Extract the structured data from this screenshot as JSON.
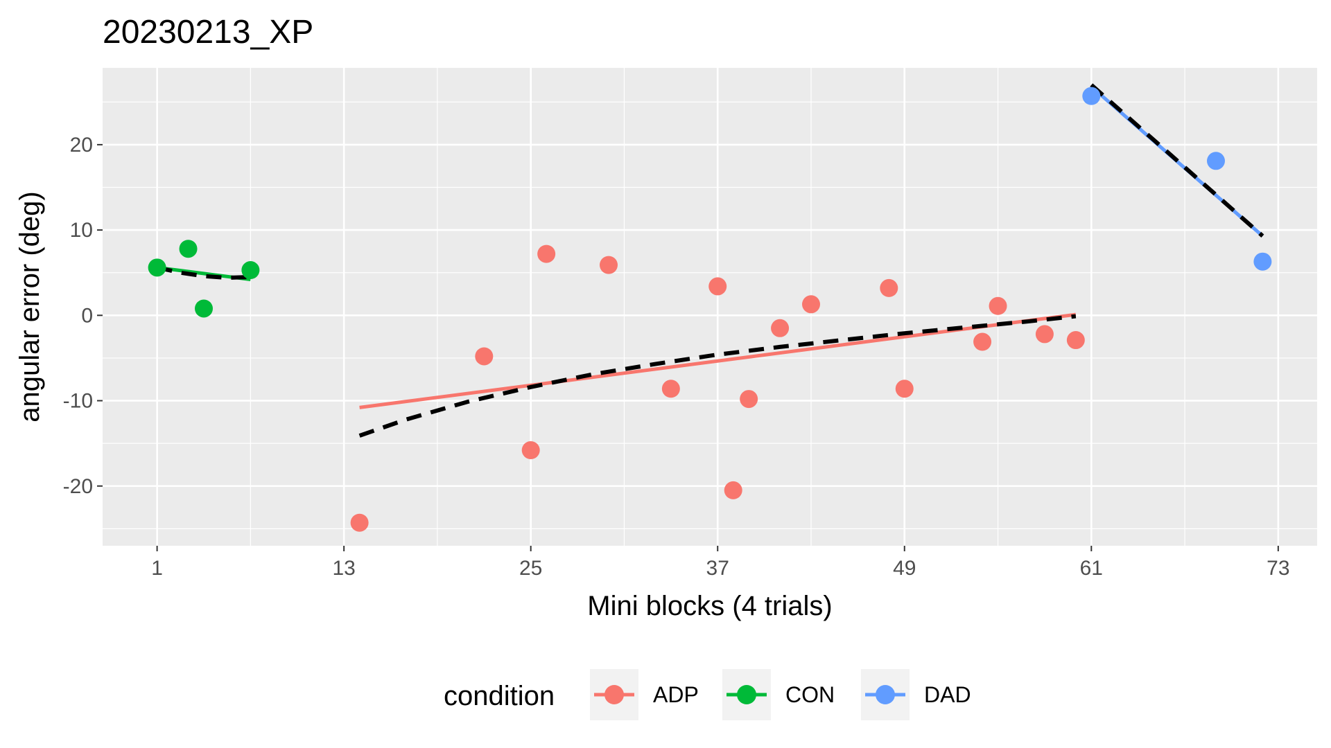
{
  "chart_data": {
    "type": "scatter",
    "title": "20230213_XP",
    "xlabel": "Mini blocks (4 trials)",
    "ylabel": "angular error (deg)",
    "xlim": [
      -2.5,
      75.5
    ],
    "ylim": [
      -27,
      29
    ],
    "x_ticks": [
      1,
      13,
      25,
      37,
      49,
      61,
      73
    ],
    "x_tick_labels": [
      "1",
      "13",
      "25",
      "37",
      "49",
      "61",
      "73"
    ],
    "y_ticks": [
      -20,
      -10,
      0,
      10,
      20
    ],
    "y_tick_labels": [
      "-20",
      "-10",
      "0",
      "10",
      "20"
    ],
    "grid": true,
    "legend": {
      "title": "condition",
      "position": "bottom",
      "entries": [
        "ADP",
        "CON",
        "DAD"
      ]
    },
    "series": [
      {
        "name": "ADP",
        "color": "#F8766D",
        "points": [
          {
            "x": 14,
            "y": -24.3
          },
          {
            "x": 22,
            "y": -4.8
          },
          {
            "x": 25,
            "y": -15.8
          },
          {
            "x": 26,
            "y": 7.2
          },
          {
            "x": 30,
            "y": 5.9
          },
          {
            "x": 34,
            "y": -8.6
          },
          {
            "x": 37,
            "y": 3.4
          },
          {
            "x": 38,
            "y": -20.5
          },
          {
            "x": 39,
            "y": -9.8
          },
          {
            "x": 41,
            "y": -1.5
          },
          {
            "x": 43,
            "y": 1.3
          },
          {
            "x": 48,
            "y": 3.2
          },
          {
            "x": 49,
            "y": -8.6
          },
          {
            "x": 54,
            "y": -3.1
          },
          {
            "x": 55,
            "y": 1.1
          },
          {
            "x": 58,
            "y": -2.2
          },
          {
            "x": 60,
            "y": -2.9
          }
        ],
        "fit_line": {
          "x": [
            14,
            60
          ],
          "y": [
            -10.8,
            0.1
          ]
        },
        "dashed_fit": {
          "x": [
            14,
            17,
            21,
            25,
            29,
            33,
            37,
            41,
            45,
            49,
            53,
            57,
            60
          ],
          "y": [
            -14.1,
            -12.2,
            -10.1,
            -8.4,
            -6.9,
            -5.7,
            -4.6,
            -3.7,
            -2.9,
            -2.1,
            -1.4,
            -0.7,
            -0.1
          ]
        }
      },
      {
        "name": "CON",
        "color": "#00BA38",
        "points": [
          {
            "x": 1,
            "y": 5.6
          },
          {
            "x": 3,
            "y": 7.8
          },
          {
            "x": 4,
            "y": 0.8
          },
          {
            "x": 7,
            "y": 5.3
          }
        ],
        "fit_line": {
          "x": [
            1,
            7
          ],
          "y": [
            5.6,
            4.2
          ]
        },
        "dashed_fit": {
          "x": [
            1,
            2.5,
            4,
            5.5,
            7
          ],
          "y": [
            5.6,
            5.0,
            4.6,
            4.4,
            4.5
          ]
        }
      },
      {
        "name": "DAD",
        "color": "#619CFF",
        "points": [
          {
            "x": 61,
            "y": 25.7
          },
          {
            "x": 69,
            "y": 18.1
          },
          {
            "x": 72,
            "y": 6.3
          }
        ],
        "fit_line": {
          "x": [
            61,
            72
          ],
          "y": [
            26.8,
            9.3
          ]
        },
        "dashed_fit": {
          "x": [
            61,
            72
          ],
          "y": [
            27,
            9.3
          ]
        }
      }
    ]
  }
}
